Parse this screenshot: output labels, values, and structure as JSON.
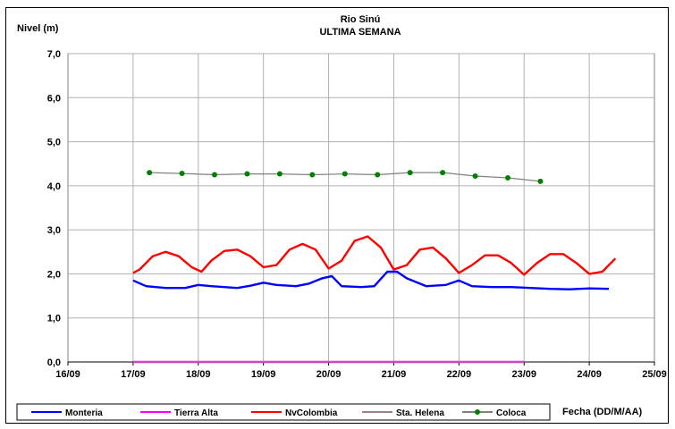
{
  "chart_data": {
    "type": "line",
    "title": "Rio Sinú",
    "subtitle": "ULTIMA SEMANA",
    "ylabel": "Nivel (m)",
    "xlabel": "Fecha (DD/M/AA)",
    "ylim": [
      0,
      7
    ],
    "y_ticks": [
      "0,0",
      "1,0",
      "2,0",
      "3,0",
      "4,0",
      "5,0",
      "6,0",
      "7,0"
    ],
    "x_ticks": [
      "16/09",
      "17/09",
      "18/09",
      "19/09",
      "20/09",
      "21/09",
      "22/09",
      "23/09",
      "24/09",
      "25/09"
    ],
    "grid": true,
    "legend_position": "bottom",
    "colors": {
      "Monteria": "#0000ff",
      "Tierra Alta": "#ff00ff",
      "NvColombia": "#ff0000",
      "Sta. Helena": "#a08080",
      "Coloca": "#808080",
      "Coloca_marker": "#008000"
    },
    "series": [
      {
        "name": "Monteria",
        "color": "#0000ff",
        "x": [
          1.0,
          1.2,
          1.5,
          1.8,
          2.0,
          2.2,
          2.4,
          2.6,
          2.8,
          3.0,
          3.2,
          3.5,
          3.7,
          3.9,
          4.05,
          4.2,
          4.5,
          4.7,
          4.9,
          5.05,
          5.2,
          5.5,
          5.8,
          6.0,
          6.2,
          6.5,
          6.8,
          7.1,
          7.4,
          7.7,
          8.0,
          8.3
        ],
        "y": [
          1.85,
          1.72,
          1.68,
          1.68,
          1.75,
          1.72,
          1.7,
          1.68,
          1.73,
          1.8,
          1.75,
          1.72,
          1.78,
          1.9,
          1.95,
          1.72,
          1.7,
          1.72,
          2.05,
          2.05,
          1.9,
          1.72,
          1.75,
          1.85,
          1.72,
          1.7,
          1.7,
          1.68,
          1.66,
          1.65,
          1.67,
          1.66
        ]
      },
      {
        "name": "Tierra Alta",
        "color": "#ff00ff",
        "x": [
          1.0,
          7.0
        ],
        "y": [
          0.0,
          0.0
        ]
      },
      {
        "name": "NvColombia",
        "color": "#ff0000",
        "x": [
          1.0,
          1.1,
          1.3,
          1.5,
          1.7,
          1.9,
          2.05,
          2.2,
          2.4,
          2.6,
          2.8,
          3.0,
          3.2,
          3.4,
          3.6,
          3.8,
          4.0,
          4.2,
          4.4,
          4.6,
          4.8,
          5.0,
          5.2,
          5.4,
          5.6,
          5.8,
          6.0,
          6.2,
          6.4,
          6.6,
          6.8,
          7.0,
          7.2,
          7.4,
          7.6,
          7.8,
          8.0,
          8.2,
          8.4
        ],
        "y": [
          2.02,
          2.1,
          2.4,
          2.5,
          2.4,
          2.15,
          2.05,
          2.3,
          2.52,
          2.55,
          2.4,
          2.15,
          2.2,
          2.55,
          2.68,
          2.55,
          2.12,
          2.3,
          2.75,
          2.85,
          2.6,
          2.1,
          2.2,
          2.55,
          2.6,
          2.35,
          2.02,
          2.2,
          2.42,
          2.42,
          2.25,
          1.98,
          2.25,
          2.45,
          2.45,
          2.25,
          2.0,
          2.05,
          2.35
        ]
      },
      {
        "name": "Sta. Helena",
        "color": "#a08080",
        "x": [
          1.0,
          7.0
        ],
        "y": [
          0.0,
          0.0
        ]
      },
      {
        "name": "Coloca",
        "color": "#808080",
        "marker_color": "#008000",
        "x": [
          1.25,
          1.75,
          2.25,
          2.75,
          3.25,
          3.75,
          4.25,
          4.75,
          5.25,
          5.75,
          6.25,
          6.75,
          7.25
        ],
        "y": [
          4.3,
          4.28,
          4.25,
          4.27,
          4.27,
          4.25,
          4.27,
          4.25,
          4.3,
          4.3,
          4.22,
          4.18,
          4.1
        ]
      }
    ]
  }
}
